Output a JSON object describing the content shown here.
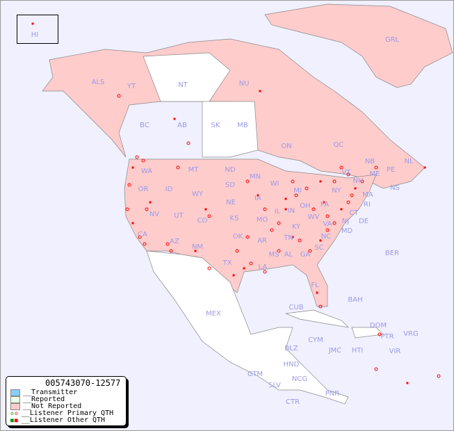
{
  "legend": {
    "code": "005743070-12577",
    "items": [
      {
        "label": "__Transmitter",
        "color": "#87cefa"
      },
      {
        "label": "__Reported",
        "color": "#e6ffe6"
      },
      {
        "label": "__Not Reported",
        "color": "#ffcccc"
      },
      {
        "label": "__Listener Primary QTH",
        "color": "#ff0000"
      },
      {
        "label": "__Listener Other QTH",
        "color": "#ff0000"
      }
    ]
  },
  "colors": {
    "ocean": "#f0f0ff",
    "not_reported": "#ffcccc",
    "reported": "#e6ffe6",
    "no_data": "#ffffff",
    "dots": "#ff0000",
    "label": "#9a9ae8"
  },
  "regions": [
    "HI",
    "ALS",
    "YT",
    "NT",
    "NU",
    "GRL",
    "BC",
    "AB",
    "SK",
    "MB",
    "ON",
    "QC",
    "NL",
    "NB",
    "NS",
    "PE",
    "WA",
    "OR",
    "CA",
    "ID",
    "NV",
    "MT",
    "WY",
    "UT",
    "AZ",
    "CO",
    "NM",
    "ND",
    "SD",
    "NE",
    "KS",
    "OK",
    "TX",
    "MN",
    "IA",
    "MO",
    "AR",
    "LA",
    "WI",
    "IL",
    "MI",
    "IN",
    "KY",
    "TN",
    "MS",
    "AL",
    "GA",
    "FL",
    "SC",
    "NC",
    "VA",
    "WV",
    "OH",
    "PA",
    "NY",
    "VT",
    "NH",
    "ME",
    "MA",
    "CT",
    "RI",
    "NJ",
    "DE",
    "MD",
    "BER",
    "BAH",
    "CUB",
    "MEX",
    "DOM",
    "PTR",
    "VRG",
    "CYM",
    "JMC",
    "HTI",
    "VIR",
    "BLZ",
    "HND",
    "GTM",
    "SLV",
    "NCG",
    "CTR",
    "PNR"
  ]
}
